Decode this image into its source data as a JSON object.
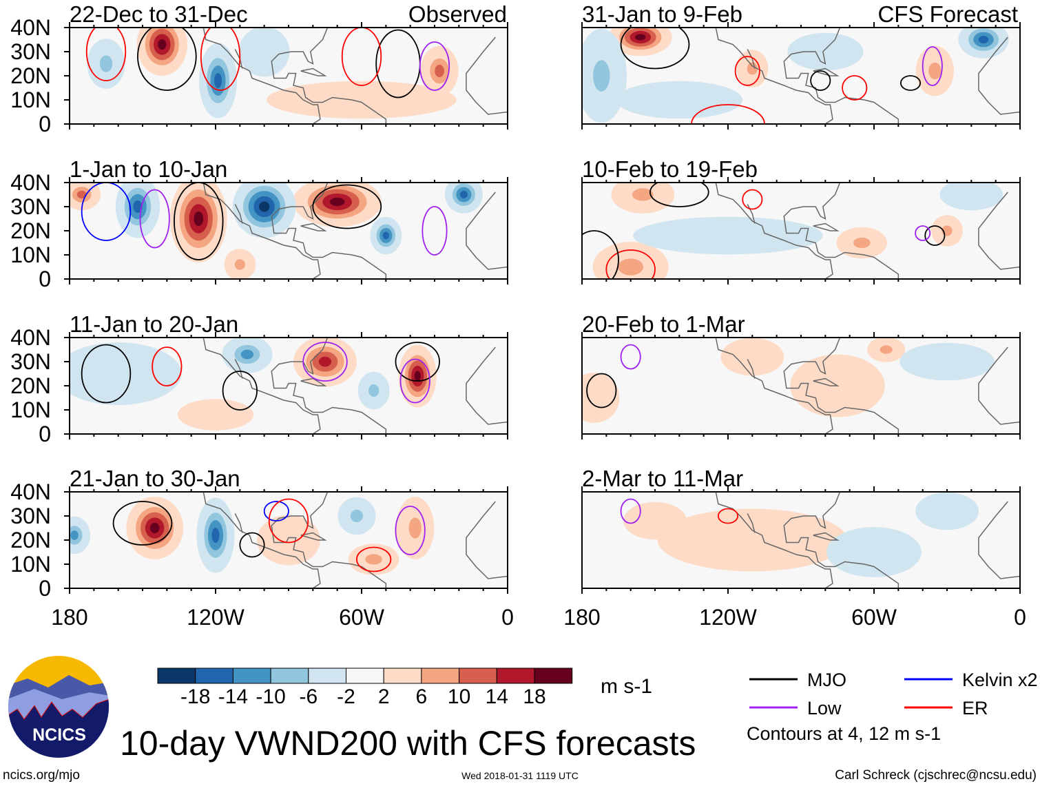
{
  "title": "10-day VWND200 with CFS forecasts",
  "logo_text": "NCICS",
  "left_header": "Observed",
  "right_header": "CFS Forecast",
  "footer": {
    "left": "ncics.org/mjo",
    "center": "Wed 2018-01-31 1119 UTC",
    "right": "Carl Schreck (cjschrec@ncsu.edu)"
  },
  "lat_labels": [
    "40N",
    "30N",
    "20N",
    "10N",
    "0"
  ],
  "lon_labels": [
    "180",
    "120W",
    "60W",
    "0"
  ],
  "colorbar": {
    "units": "m s-1",
    "labels": [
      "-18",
      "-14",
      "-10",
      "-6",
      "-2",
      "2",
      "6",
      "10",
      "14",
      "18"
    ],
    "colors": [
      "#0b3768",
      "#2166ac",
      "#4393c3",
      "#92c5de",
      "#d1e5f0",
      "#f7f7f7",
      "#fddbc7",
      "#f4a582",
      "#d6604d",
      "#b2182b",
      "#67001f"
    ]
  },
  "legend": {
    "items": [
      {
        "label": "MJO",
        "color": "#000000"
      },
      {
        "label": "Kelvin x2",
        "color": "#0000ff"
      },
      {
        "label": "Low",
        "color": "#a020f0"
      },
      {
        "label": "ER",
        "color": "#ff0000"
      }
    ],
    "note": "Contours at 4, 12 m s-1"
  },
  "panels": [
    {
      "title": "22-Dec to 31-Dec",
      "column": "left",
      "anomalies": [
        [
          -142,
          33,
          8,
          10,
          20
        ],
        [
          -119,
          18,
          6,
          12,
          -16
        ],
        [
          -28,
          22,
          6,
          8,
          10
        ],
        [
          -165,
          25,
          6,
          8,
          -6
        ],
        [
          -60,
          10,
          30,
          6,
          4
        ],
        [
          -100,
          30,
          8,
          8,
          -4
        ]
      ],
      "contours": [
        [
          -140,
          28,
          12,
          14,
          "MJO"
        ],
        [
          -45,
          25,
          9,
          14,
          "MJO"
        ],
        [
          -165,
          30,
          8,
          12,
          "ER"
        ],
        [
          -118,
          28,
          8,
          14,
          "ER"
        ],
        [
          -30,
          24,
          6,
          10,
          "Low"
        ],
        [
          -60,
          28,
          8,
          12,
          "ER"
        ]
      ]
    },
    {
      "title": "1-Jan to 10-Jan",
      "column": "left",
      "anomalies": [
        [
          -127,
          25,
          9,
          14,
          20
        ],
        [
          -70,
          32,
          14,
          8,
          20
        ],
        [
          -100,
          30,
          10,
          10,
          -20
        ],
        [
          -152,
          30,
          7,
          10,
          -16
        ],
        [
          -50,
          18,
          5,
          6,
          -16
        ],
        [
          -18,
          35,
          6,
          6,
          -16
        ],
        [
          -175,
          35,
          6,
          5,
          10
        ],
        [
          -110,
          6,
          5,
          5,
          6
        ]
      ],
      "contours": [
        [
          -127,
          24,
          10,
          16,
          "MJO"
        ],
        [
          -66,
          30,
          14,
          9,
          "MJO"
        ],
        [
          -165,
          28,
          10,
          12,
          "Kelvin"
        ],
        [
          -30,
          20,
          5,
          10,
          "Low"
        ],
        [
          -145,
          25,
          6,
          12,
          "Low"
        ]
      ]
    },
    {
      "title": "11-Jan to 20-Jan",
      "column": "left",
      "anomalies": [
        [
          -37,
          24,
          6,
          10,
          20
        ],
        [
          -75,
          30,
          10,
          8,
          14
        ],
        [
          -107,
          33,
          8,
          6,
          -12
        ],
        [
          -55,
          18,
          5,
          6,
          -8
        ],
        [
          -160,
          25,
          20,
          10,
          -3
        ],
        [
          -120,
          8,
          12,
          5,
          4
        ]
      ],
      "contours": [
        [
          -165,
          25,
          10,
          12,
          "MJO"
        ],
        [
          -110,
          18,
          7,
          8,
          "MJO"
        ],
        [
          -37,
          30,
          9,
          8,
          "MJO"
        ],
        [
          -38,
          22,
          6,
          9,
          "Low"
        ],
        [
          -140,
          28,
          6,
          8,
          "ER"
        ],
        [
          -75,
          30,
          9,
          8,
          "Low"
        ]
      ]
    },
    {
      "title": "21-Jan to 30-Jan",
      "column": "left",
      "anomalies": [
        [
          -145,
          25,
          9,
          10,
          20
        ],
        [
          -120,
          22,
          6,
          12,
          -16
        ],
        [
          -178,
          22,
          5,
          6,
          -12
        ],
        [
          -38,
          25,
          6,
          10,
          8
        ],
        [
          -62,
          30,
          6,
          6,
          -6
        ],
        [
          -55,
          12,
          8,
          5,
          6
        ],
        [
          -90,
          20,
          10,
          8,
          4
        ]
      ],
      "contours": [
        [
          -150,
          27,
          12,
          9,
          "MJO"
        ],
        [
          -105,
          18,
          5,
          5,
          "MJO"
        ],
        [
          -40,
          24,
          6,
          10,
          "Low"
        ],
        [
          -55,
          12,
          7,
          5,
          "ER"
        ],
        [
          -95,
          32,
          5,
          4,
          "Kelvin"
        ],
        [
          -90,
          28,
          8,
          9,
          "ER"
        ]
      ]
    },
    {
      "title": "31-Jan to 9-Feb",
      "column": "right",
      "anomalies": [
        [
          -156,
          36,
          10,
          6,
          20
        ],
        [
          -172,
          20,
          8,
          15,
          -6
        ],
        [
          -110,
          23,
          5,
          6,
          8
        ],
        [
          -15,
          35,
          8,
          6,
          -14
        ],
        [
          -35,
          22,
          6,
          8,
          6
        ],
        [
          -140,
          10,
          20,
          6,
          -4
        ],
        [
          -80,
          30,
          12,
          6,
          -4
        ]
      ],
      "contours": [
        [
          -150,
          33,
          14,
          10,
          "MJO"
        ],
        [
          -82,
          18,
          4,
          4,
          "MJO"
        ],
        [
          -45,
          17,
          4,
          3,
          "MJO"
        ],
        [
          -36,
          24,
          4,
          8,
          "Low"
        ],
        [
          -112,
          22,
          5,
          6,
          "ER"
        ],
        [
          -68,
          15,
          5,
          5,
          "ER"
        ],
        [
          -120,
          0,
          15,
          8,
          "ER"
        ]
      ]
    },
    {
      "title": "10-Feb to 19-Feb",
      "column": "right",
      "anomalies": [
        [
          -155,
          35,
          10,
          6,
          6
        ],
        [
          -160,
          5,
          12,
          8,
          8
        ],
        [
          -120,
          18,
          30,
          6,
          -3
        ],
        [
          -65,
          15,
          8,
          5,
          6
        ],
        [
          -30,
          20,
          5,
          5,
          6
        ],
        [
          -20,
          35,
          10,
          5,
          -4
        ]
      ],
      "contours": [
        [
          -140,
          36,
          12,
          6,
          "MJO"
        ],
        [
          -35,
          18,
          4,
          4,
          "MJO"
        ],
        [
          -160,
          4,
          10,
          8,
          "ER"
        ],
        [
          -40,
          19,
          3,
          3,
          "Low"
        ],
        [
          -110,
          33,
          4,
          4,
          "ER"
        ],
        [
          -175,
          8,
          10,
          12,
          "MJO"
        ]
      ]
    },
    {
      "title": "20-Feb to 1-Mar",
      "column": "right",
      "anomalies": [
        [
          -55,
          35,
          6,
          4,
          6
        ],
        [
          -75,
          20,
          15,
          10,
          3
        ],
        [
          -175,
          15,
          8,
          8,
          3
        ],
        [
          -110,
          32,
          10,
          6,
          3
        ],
        [
          -30,
          30,
          15,
          6,
          -3
        ]
      ],
      "contours": [
        [
          -172,
          18,
          6,
          7,
          "MJO"
        ],
        [
          -160,
          32,
          4,
          5,
          "Low"
        ]
      ]
    },
    {
      "title": "2-Mar to 11-Mar",
      "column": "right",
      "anomalies": [
        [
          -110,
          20,
          30,
          10,
          3
        ],
        [
          -150,
          28,
          10,
          6,
          3
        ],
        [
          -60,
          15,
          15,
          8,
          -3
        ],
        [
          -30,
          32,
          10,
          6,
          -3
        ]
      ],
      "contours": [
        [
          -160,
          32,
          4,
          5,
          "Low"
        ],
        [
          -120,
          30,
          4,
          3,
          "ER"
        ]
      ]
    }
  ]
}
